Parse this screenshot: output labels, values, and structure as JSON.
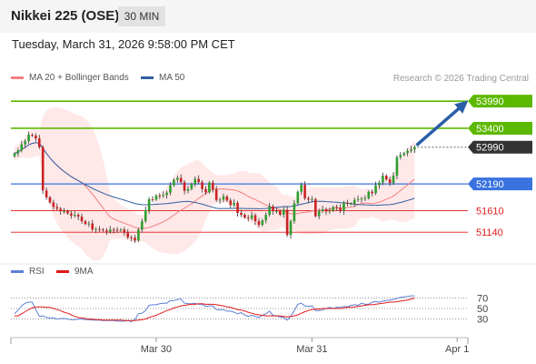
{
  "header": {
    "title": "Nikkei 225 (OSE)",
    "timeframe": "30 MIN"
  },
  "datetime": "Tuesday, March 31, 2026 9:58:00 PM CET",
  "legend": {
    "ma20": {
      "label": "MA 20 + Bollinger Bands",
      "color": "#f08080"
    },
    "ma50": {
      "label": "MA 50",
      "color": "#2f5f9f"
    }
  },
  "source": "Research © 2026 Trading Central",
  "rsi_legend": {
    "rsi": {
      "label": "RSI",
      "color": "#5b7fd6"
    },
    "ma9": {
      "label": "9MA",
      "color": "#e21b1b"
    }
  },
  "chart_data": {
    "type": "candlestick",
    "price_ylim": [
      50650,
      54250
    ],
    "levels": [
      {
        "value": 53990,
        "label": "53990",
        "kind": "resistance",
        "color": "#5db800"
      },
      {
        "value": 53400,
        "label": "53400",
        "kind": "resistance",
        "color": "#5db800"
      },
      {
        "value": 52990,
        "label": "52990",
        "kind": "last",
        "color": "#333333"
      },
      {
        "value": 52190,
        "label": "52190",
        "kind": "pivot",
        "color": "#3a73e0"
      },
      {
        "value": 51610,
        "label": "51610",
        "kind": "support",
        "color": "#e21b1b"
      },
      {
        "value": 51140,
        "label": "51140",
        "kind": "support",
        "color": "#e21b1b"
      }
    ],
    "closes": [
      52850,
      52920,
      53050,
      53120,
      53260,
      53240,
      53180,
      52990,
      52050,
      51900,
      51790,
      51690,
      51650,
      51600,
      51600,
      51550,
      51500,
      51520,
      51480,
      51380,
      51320,
      51330,
      51200,
      51210,
      51200,
      51180,
      51150,
      51200,
      51190,
      51180,
      51200,
      51130,
      51030,
      51020,
      50960,
      51200,
      51380,
      51620,
      51860,
      51850,
      51940,
      51930,
      51950,
      52000,
      52160,
      52280,
      52320,
      52230,
      52040,
      52080,
      52190,
      52300,
      52230,
      52080,
      52010,
      52220,
      52070,
      51840,
      51850,
      51920,
      51830,
      51730,
      51780,
      51560,
      51520,
      51460,
      51440,
      51510,
      51380,
      51300,
      51400,
      51520,
      51700,
      51600,
      51600,
      51520,
      51630,
      51080,
      51380,
      51770,
      52020,
      52170,
      51880,
      51850,
      51860,
      51490,
      51600,
      51640,
      51590,
      51610,
      51690,
      51670,
      51600,
      51780,
      51760,
      51760,
      51840,
      51860,
      51870,
      51880,
      52020,
      51990,
      52160,
      52220,
      52370,
      52290,
      52210,
      52370,
      52770,
      52820,
      52860,
      52910,
      52940,
      52990
    ],
    "rsi_ylim": [
      0,
      100
    ],
    "rsi_levels": [
      70,
      50,
      30
    ],
    "rsi": [
      40,
      47,
      55,
      60,
      62,
      62,
      48,
      35,
      36,
      33,
      32,
      32,
      30,
      31,
      31,
      30,
      29,
      29,
      30,
      30,
      29,
      29,
      28,
      28,
      28,
      27,
      27,
      27,
      27,
      26,
      26,
      26,
      27,
      25,
      29,
      40,
      41,
      46,
      56,
      57,
      57,
      59,
      60,
      60,
      65,
      65,
      67,
      68,
      60,
      59,
      59,
      60,
      58,
      58,
      54,
      55,
      55,
      48,
      48,
      48,
      45,
      45,
      43,
      40,
      42,
      38,
      35,
      37,
      35,
      33,
      37,
      40,
      45,
      37,
      36,
      34,
      33,
      28,
      35,
      46,
      58,
      60,
      55,
      54,
      55,
      46,
      46,
      47,
      50,
      52,
      50,
      52,
      52,
      54,
      53,
      56,
      57,
      56,
      60,
      58,
      58,
      62,
      63,
      62,
      64,
      65,
      66,
      67,
      69,
      71,
      72,
      73,
      74,
      74
    ],
    "rsi_9ma": [
      36,
      36,
      40,
      44,
      48,
      51,
      53,
      53,
      53,
      52,
      52,
      50,
      48,
      46,
      43,
      41,
      38,
      35,
      33,
      32,
      31,
      30,
      30,
      29,
      29,
      28,
      28,
      28,
      28,
      28,
      28,
      27,
      27,
      27,
      27,
      28,
      29,
      30,
      33,
      35,
      37,
      40,
      43,
      46,
      48,
      51,
      53,
      55,
      56,
      57,
      58,
      58,
      59,
      59,
      58,
      58,
      58,
      57,
      56,
      55,
      53,
      52,
      50,
      48,
      47,
      45,
      43,
      41,
      39,
      38,
      37,
      36,
      36,
      36,
      36,
      36,
      35,
      34,
      35,
      36,
      38,
      41,
      44,
      46,
      48,
      49,
      49,
      50,
      50,
      50,
      50,
      50,
      50,
      51,
      52,
      52,
      53,
      54,
      55,
      56,
      57,
      57,
      58,
      59,
      60,
      61,
      62,
      62,
      63,
      64,
      65,
      66,
      68,
      70
    ],
    "x_labels": [
      {
        "label": "Mar 30",
        "index": 40
      },
      {
        "label": "Mar 31",
        "index": 84
      },
      {
        "label": "Apr 1",
        "index": 125
      }
    ],
    "x_count": 128
  }
}
